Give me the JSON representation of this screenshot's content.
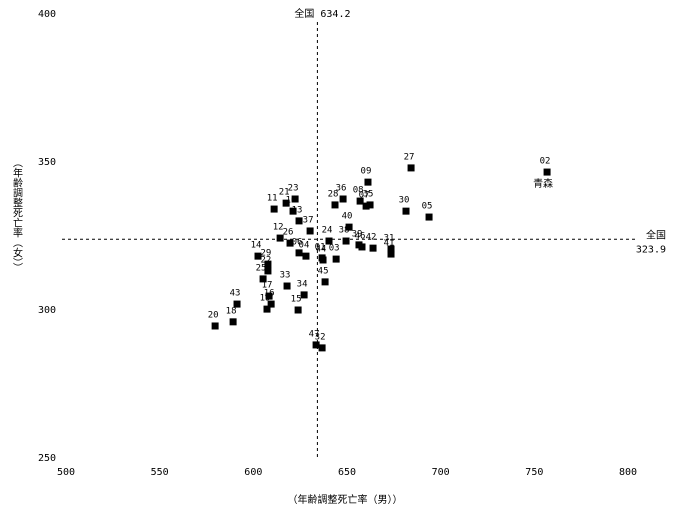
{
  "chart_data": {
    "type": "scatter",
    "xlabel": "（年齢調整死亡率（男））",
    "ylabel": "（年齢調整死亡率（女））",
    "xlim": [
      500,
      800
    ],
    "xticks": [
      500,
      550,
      600,
      650,
      700,
      750,
      800
    ],
    "ylim": [
      250,
      400
    ],
    "yticks": [
      250,
      300,
      350,
      400
    ],
    "color": "#000000",
    "reference_lines": {
      "x": {
        "name": "全国",
        "value": 634.2
      },
      "y": {
        "name": "全国",
        "value": 323.9
      }
    },
    "annotations": [
      {
        "text": "青森",
        "point": 0
      }
    ],
    "point_labels": [
      "02",
      "27",
      "09",
      "30",
      "05",
      "08",
      "35",
      "36",
      "28",
      "07",
      "40",
      "23",
      "21",
      "11",
      "10",
      "13",
      "37",
      "12",
      "26",
      "24",
      "38",
      "39",
      "46",
      "42",
      "31",
      "41",
      "04",
      "06",
      "01",
      "03",
      "14",
      "29",
      "22",
      "25",
      "33",
      "44",
      "17",
      "34",
      "16",
      "45",
      "43",
      "15",
      "19",
      "18",
      "20",
      "47",
      "32"
    ],
    "x": [
      756.8,
      684.2,
      661.2,
      681.5,
      693.8,
      657.0,
      662.3,
      647.9,
      643.6,
      660.2,
      651.1,
      622.3,
      617.5,
      611.1,
      621.2,
      624.4,
      630.3,
      614.3,
      619.6,
      640.4,
      649.5,
      656.4,
      658.0,
      663.9,
      673.5,
      673.5,
      628.1,
      624.4,
      636.7,
      644.2,
      602.5,
      607.8,
      607.8,
      605.2,
      618.0,
      637.2,
      608.4,
      627.1,
      609.5,
      638.3,
      591.3,
      623.9,
      607.3,
      589.2,
      579.6,
      633.5,
      636.7
    ],
    "values": [
      346.6,
      348.0,
      343.2,
      333.4,
      331.4,
      336.8,
      335.5,
      337.5,
      335.5,
      335.1,
      328.0,
      337.5,
      336.1,
      334.1,
      333.4,
      330.1,
      326.7,
      324.3,
      322.6,
      323.3,
      323.3,
      322.0,
      321.3,
      320.9,
      320.6,
      318.9,
      318.2,
      319.3,
      317.6,
      317.2,
      318.2,
      315.5,
      313.2,
      310.5,
      308.1,
      316.9,
      304.7,
      305.1,
      302.0,
      309.5,
      302.0,
      300.0,
      300.3,
      296.0,
      294.6,
      288.2,
      287.2
    ]
  }
}
